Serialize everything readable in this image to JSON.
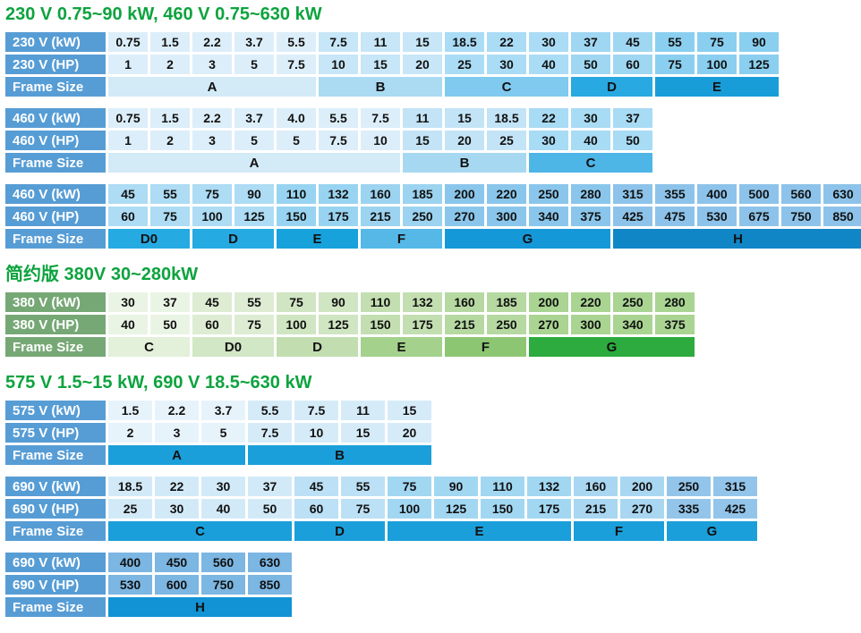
{
  "colors": {
    "title_green": "#0da33e",
    "blue_label": "#579dd5",
    "green_label": "#76a876",
    "cell_text": "#111111",
    "label_text": "#ffffff"
  },
  "sections": [
    {
      "title": "230 V 0.75~90 kW, 460 V 0.75~630 kW",
      "tables": [
        {
          "id": "table-230v",
          "row_labels": [
            "230 V (kW)",
            "230 V (HP)",
            "Frame Size"
          ],
          "label_bg": "#579dd5",
          "groups": [
            {
              "frame": "A",
              "cell_bg": "#dceef9",
              "frame_bg": "#d3eaf7",
              "cols": [
                [
                  "0.75",
                  "1"
                ],
                [
                  "1.5",
                  "2"
                ],
                [
                  "2.2",
                  "3"
                ],
                [
                  "3.7",
                  "5"
                ],
                [
                  "5.5",
                  "7.5"
                ]
              ]
            },
            {
              "frame": "B",
              "cell_bg": "#c7e6f7",
              "frame_bg": "#abdaf3",
              "cols": [
                [
                  "7.5",
                  "10"
                ],
                [
                  "11",
                  "15"
                ],
                [
                  "15",
                  "20"
                ]
              ]
            },
            {
              "frame": "C",
              "cell_bg": "#aadcf5",
              "frame_bg": "#7fcaee",
              "cols": [
                [
                  "18.5",
                  "25"
                ],
                [
                  "22",
                  "30"
                ],
                [
                  "30",
                  "40"
                ]
              ]
            },
            {
              "frame": "D",
              "cell_bg": "#9fd7f3",
              "frame_bg": "#29a9e1",
              "cols": [
                [
                  "37",
                  "50"
                ],
                [
                  "45",
                  "60"
                ]
              ]
            },
            {
              "frame": "E",
              "cell_bg": "#8acff0",
              "frame_bg": "#199dd9",
              "cols": [
                [
                  "55",
                  "75"
                ],
                [
                  "75",
                  "100"
                ],
                [
                  "90",
                  "125"
                ]
              ]
            }
          ]
        },
        {
          "id": "table-460v-low",
          "row_labels": [
            "460 V (kW)",
            "460 V (HP)",
            "Frame Size"
          ],
          "label_bg": "#579dd5",
          "groups": [
            {
              "frame": "A",
              "cell_bg": "#dceef9",
              "frame_bg": "#d3eaf7",
              "cols": [
                [
                  "0.75",
                  "1"
                ],
                [
                  "1.5",
                  "2"
                ],
                [
                  "2.2",
                  "3"
                ],
                [
                  "3.7",
                  "5"
                ],
                [
                  "4.0",
                  "5"
                ],
                [
                  "5.5",
                  "7.5"
                ],
                [
                  "7.5",
                  "10"
                ]
              ]
            },
            {
              "frame": "B",
              "cell_bg": "#c3e4f6",
              "frame_bg": "#a7d8f2",
              "cols": [
                [
                  "11",
                  "15"
                ],
                [
                  "15",
                  "20"
                ],
                [
                  "18.5",
                  "25"
                ]
              ]
            },
            {
              "frame": "C",
              "cell_bg": "#a8dbf4",
              "frame_bg": "#4eb5e7",
              "cols": [
                [
                  "22",
                  "30"
                ],
                [
                  "30",
                  "40"
                ],
                [
                  "37",
                  "50"
                ]
              ]
            }
          ]
        },
        {
          "id": "table-460v-high",
          "row_labels": [
            "460 V (kW)",
            "460 V (HP)",
            "Frame Size"
          ],
          "label_bg": "#579dd5",
          "groups": [
            {
              "frame": "D0",
              "cell_bg": "#addcf4",
              "frame_bg": "#26aae2",
              "cols": [
                [
                  "45",
                  "60"
                ],
                [
                  "55",
                  "75"
                ]
              ]
            },
            {
              "frame": "D",
              "cell_bg": "#addcf4",
              "frame_bg": "#26aae2",
              "cols": [
                [
                  "75",
                  "100"
                ],
                [
                  "90",
                  "125"
                ]
              ]
            },
            {
              "frame": "E",
              "cell_bg": "#98d4f1",
              "frame_bg": "#17a2dc",
              "cols": [
                [
                  "110",
                  "150"
                ],
                [
                  "132",
                  "175"
                ]
              ]
            },
            {
              "frame": "F",
              "cell_bg": "#9cd3f0",
              "frame_bg": "#55b8e7",
              "cols": [
                [
                  "160",
                  "215"
                ],
                [
                  "185",
                  "250"
                ]
              ]
            },
            {
              "frame": "G",
              "cell_bg": "#8ac6ec",
              "frame_bg": "#1598d8",
              "cols": [
                [
                  "200",
                  "270"
                ],
                [
                  "220",
                  "300"
                ],
                [
                  "250",
                  "340"
                ],
                [
                  "280",
                  "375"
                ]
              ]
            },
            {
              "frame": "H",
              "cell_bg": "#8dc3ea",
              "frame_bg": "#1186c6",
              "cols": [
                [
                  "315",
                  "425"
                ],
                [
                  "355",
                  "475"
                ],
                [
                  "400",
                  "530"
                ],
                [
                  "500",
                  "675"
                ],
                [
                  "560",
                  "750"
                ],
                [
                  "630",
                  "850"
                ]
              ]
            }
          ]
        }
      ]
    },
    {
      "title": "简约版 380V 30~280kW",
      "tables": [
        {
          "id": "table-380v",
          "row_labels": [
            "380 V (kW)",
            "380 V (HP)",
            "Frame Size"
          ],
          "label_bg": "#76a876",
          "groups": [
            {
              "frame": "C",
              "cell_bg": "#eaf4e4",
              "frame_bg": "#e3f0da",
              "cols": [
                [
                  "30",
                  "40"
                ],
                [
                  "37",
                  "50"
                ]
              ]
            },
            {
              "frame": "D0",
              "cell_bg": "#ddecd3",
              "frame_bg": "#d2e7c5",
              "cols": [
                [
                  "45",
                  "60"
                ],
                [
                  "55",
                  "75"
                ]
              ]
            },
            {
              "frame": "D",
              "cell_bg": "#d0e5c2",
              "frame_bg": "#c2deb0",
              "cols": [
                [
                  "75",
                  "100"
                ],
                [
                  "90",
                  "125"
                ]
              ]
            },
            {
              "frame": "E",
              "cell_bg": "#c3dfb1",
              "frame_bg": "#a4d28d",
              "cols": [
                [
                  "110",
                  "150"
                ],
                [
                  "132",
                  "175"
                ]
              ]
            },
            {
              "frame": "F",
              "cell_bg": "#b6d9a2",
              "frame_bg": "#8dc673",
              "cols": [
                [
                  "160",
                  "215"
                ],
                [
                  "185",
                  "250"
                ]
              ]
            },
            {
              "frame": "G",
              "cell_bg": "#a9d492",
              "frame_bg": "#2dab3e",
              "cols": [
                [
                  "200",
                  "270"
                ],
                [
                  "220",
                  "300"
                ],
                [
                  "250",
                  "340"
                ],
                [
                  "280",
                  "375"
                ]
              ]
            }
          ]
        }
      ]
    },
    {
      "title": "575 V 1.5~15 kW, 690 V 18.5~630 kW",
      "tables": [
        {
          "id": "table-575v",
          "row_labels": [
            "575 V (kW)",
            "575 V (HP)",
            "Frame Size"
          ],
          "label_bg": "#579dd5",
          "groups": [
            {
              "frame": "A",
              "cell_bg": "#e7f3fb",
              "frame_bg": "#1b9fda",
              "cols": [
                [
                  "1.5",
                  "2"
                ],
                [
                  "2.2",
                  "3"
                ],
                [
                  "3.7",
                  "5"
                ]
              ]
            },
            {
              "frame": "B",
              "cell_bg": "#d6ebf8",
              "frame_bg": "#1b9fda",
              "cols": [
                [
                  "5.5",
                  "7.5"
                ],
                [
                  "7.5",
                  "10"
                ],
                [
                  "11",
                  "15"
                ],
                [
                  "15",
                  "20"
                ]
              ]
            }
          ]
        },
        {
          "id": "table-690v-low",
          "row_labels": [
            "690 V (kW)",
            "690 V (HP)",
            "Frame Size"
          ],
          "label_bg": "#579dd5",
          "groups": [
            {
              "frame": "C",
              "cell_bg": "#d2eaf8",
              "frame_bg": "#1b9fda",
              "cols": [
                [
                  "18.5",
                  "25"
                ],
                [
                  "22",
                  "30"
                ],
                [
                  "30",
                  "40"
                ],
                [
                  "37",
                  "50"
                ]
              ]
            },
            {
              "frame": "D",
              "cell_bg": "#bce0f5",
              "frame_bg": "#1b9fda",
              "cols": [
                [
                  "45",
                  "60"
                ],
                [
                  "55",
                  "75"
                ]
              ]
            },
            {
              "frame": "E",
              "cell_bg": "#a2d7f2",
              "frame_bg": "#1b9fda",
              "cols": [
                [
                  "75",
                  "100"
                ],
                [
                  "90",
                  "125"
                ],
                [
                  "110",
                  "150"
                ],
                [
                  "132",
                  "175"
                ]
              ]
            },
            {
              "frame": "F",
              "cell_bg": "#a9d7f1",
              "frame_bg": "#1b9fda",
              "cols": [
                [
                  "160",
                  "215"
                ],
                [
                  "200",
                  "270"
                ]
              ]
            },
            {
              "frame": "G",
              "cell_bg": "#93c5ea",
              "frame_bg": "#1b9fda",
              "cols": [
                [
                  "250",
                  "335"
                ],
                [
                  "315",
                  "425"
                ]
              ]
            }
          ]
        },
        {
          "id": "table-690v-high",
          "row_labels": [
            "690 V (kW)",
            "690 V (HP)",
            "Frame Size"
          ],
          "label_bg": "#579dd5",
          "groups": [
            {
              "frame": "H",
              "cell_bg": "#7cb6e2",
              "frame_bg": "#1193d5",
              "cols": [
                [
                  "400",
                  "530"
                ],
                [
                  "450",
                  "600"
                ],
                [
                  "560",
                  "750"
                ],
                [
                  "630",
                  "850"
                ]
              ]
            }
          ]
        }
      ]
    }
  ]
}
